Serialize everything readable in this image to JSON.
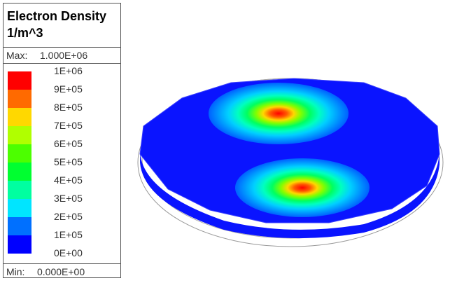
{
  "legend": {
    "title_line1": "Electron Density",
    "title_line2": "1/m^3",
    "max_label": "Max:",
    "max_value": "1.000E+06",
    "min_label": "Min:",
    "min_value": "0.000E+00",
    "ticks": [
      "1E+06",
      "9E+05",
      "8E+05",
      "7E+05",
      "6E+05",
      "5E+05",
      "4E+05",
      "3E+05",
      "2E+05",
      "1E+05",
      "0E+00"
    ],
    "band_colors": [
      "#ff0000",
      "#ff6a00",
      "#ffd800",
      "#b0ff00",
      "#4cff00",
      "#00ff30",
      "#00ffa0",
      "#00e5ff",
      "#0070ff",
      "#0000ff"
    ]
  },
  "plot": {
    "background_color": "#0a14ff",
    "hotspot_peak_color": "#ff0000"
  }
}
